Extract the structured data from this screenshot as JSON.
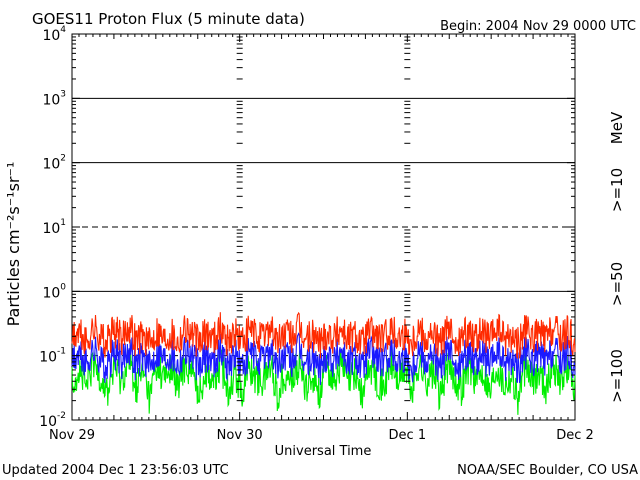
{
  "title": "GOES11 Proton Flux (5 minute data)",
  "begin_label": "Begin: 2004 Nov 29 0000 UTC",
  "updated_label": "Updated 2004 Dec  1 23:56:03 UTC",
  "credit_label": "NOAA/SEC Boulder, CO USA",
  "colors": {
    "ge10": "#ff2a00",
    "ge50": "#1a1aff",
    "ge100": "#00ee00",
    "axis": "#000000"
  },
  "chart_data": {
    "type": "line",
    "title": "GOES11 Proton Flux (5 minute data)",
    "xlabel": "Universal Time",
    "ylabel": "Particles cm⁻²s⁻¹sr⁻¹",
    "y_scale": "log",
    "ylim": [
      0.01,
      10000
    ],
    "xlim": [
      "2004-11-29 00:00",
      "2004-12-02 00:00"
    ],
    "x_ticks": [
      "Nov 29",
      "Nov 30",
      "Dec 1",
      "Dec 2"
    ],
    "y_ticks": [
      {
        "base": "10",
        "exp": "-2"
      },
      {
        "base": "10",
        "exp": "-1"
      },
      {
        "base": "10",
        "exp": "0"
      },
      {
        "base": "10",
        "exp": "1"
      },
      {
        "base": "10",
        "exp": "2"
      },
      {
        "base": "10",
        "exp": "3"
      },
      {
        "base": "10",
        "exp": "4"
      }
    ],
    "unit_label": "MeV",
    "grid": "horizontal lines at decades; dashed at 10^1 and 10^-1; day dividers dotted",
    "series": [
      {
        "name": ">=10",
        "color": "#ff2a00",
        "description": "noisy background around 0.1-0.3",
        "values": [
          0.18,
          0.22,
          0.15,
          0.26,
          0.2,
          0.16,
          0.24,
          0.19,
          0.3,
          0.17,
          0.21,
          0.14,
          0.25,
          0.18,
          0.23,
          0.16,
          0.28,
          0.2,
          0.15,
          0.22,
          0.19,
          0.26,
          0.17,
          0.21,
          0.16,
          0.24,
          0.2,
          0.18,
          0.29,
          0.15,
          0.22,
          0.19,
          0.25,
          0.17,
          0.2,
          0.16,
          0.23,
          0.19,
          0.27,
          0.18,
          0.21,
          0.15,
          0.24,
          0.2,
          0.17,
          0.26,
          0.19,
          0.22,
          0.16,
          0.28,
          0.18,
          0.21,
          0.15,
          0.23,
          0.2,
          0.17,
          0.25,
          0.19,
          0.22,
          0.16,
          0.27,
          0.18,
          0.2,
          0.15,
          0.24,
          0.19,
          0.21,
          0.17,
          0.26,
          0.18,
          0.23,
          0.16
        ]
      },
      {
        "name": ">=50",
        "color": "#1a1aff",
        "description": "noisy background around 0.05-0.15",
        "values": [
          0.08,
          0.1,
          0.07,
          0.12,
          0.09,
          0.06,
          0.11,
          0.08,
          0.14,
          0.07,
          0.1,
          0.06,
          0.12,
          0.09,
          0.11,
          0.07,
          0.13,
          0.09,
          0.06,
          0.1,
          0.08,
          0.12,
          0.07,
          0.1,
          0.06,
          0.11,
          0.09,
          0.08,
          0.13,
          0.06,
          0.1,
          0.08,
          0.12,
          0.07,
          0.09,
          0.06,
          0.11,
          0.08,
          0.13,
          0.07,
          0.1,
          0.06,
          0.12,
          0.09,
          0.07,
          0.12,
          0.08,
          0.1,
          0.06,
          0.13,
          0.08,
          0.1,
          0.06,
          0.11,
          0.09,
          0.07,
          0.12,
          0.08,
          0.1,
          0.06,
          0.12,
          0.07,
          0.09,
          0.06,
          0.11,
          0.08,
          0.1,
          0.07,
          0.12,
          0.08,
          0.11,
          0.07
        ]
      },
      {
        "name": ">=100",
        "color": "#00ee00",
        "description": "noisy background around 0.015-0.09",
        "values": [
          0.04,
          0.06,
          0.03,
          0.07,
          0.05,
          0.025,
          0.065,
          0.04,
          0.08,
          0.03,
          0.055,
          0.02,
          0.07,
          0.045,
          0.06,
          0.03,
          0.075,
          0.05,
          0.025,
          0.06,
          0.04,
          0.07,
          0.03,
          0.055,
          0.025,
          0.065,
          0.045,
          0.04,
          0.075,
          0.02,
          0.055,
          0.04,
          0.07,
          0.03,
          0.05,
          0.025,
          0.065,
          0.04,
          0.075,
          0.035,
          0.055,
          0.02,
          0.07,
          0.045,
          0.03,
          0.07,
          0.04,
          0.06,
          0.025,
          0.075,
          0.04,
          0.055,
          0.02,
          0.065,
          0.045,
          0.03,
          0.07,
          0.04,
          0.06,
          0.025,
          0.072,
          0.035,
          0.05,
          0.02,
          0.065,
          0.04,
          0.055,
          0.03,
          0.07,
          0.04,
          0.06,
          0.03
        ]
      }
    ]
  }
}
